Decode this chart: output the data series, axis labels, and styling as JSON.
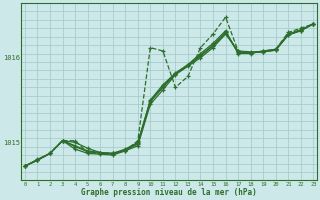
{
  "title": "Graphe pression niveau de la mer (hPa)",
  "bg_color": "#cce8e8",
  "grid_color": "#a8cccc",
  "line_color": "#2d6e2d",
  "x_ticks": [
    0,
    1,
    2,
    3,
    4,
    5,
    6,
    7,
    8,
    9,
    10,
    11,
    12,
    13,
    14,
    15,
    16,
    17,
    18,
    19,
    20,
    21,
    22,
    23
  ],
  "y_ticks": [
    1015,
    1016
  ],
  "ylim": [
    1014.55,
    1016.65
  ],
  "xlim": [
    -0.3,
    23.3
  ],
  "linear_series": [
    [
      1014.72,
      1014.79,
      1014.87,
      1015.02,
      1015.0,
      1014.93,
      1014.88,
      1014.87,
      1014.92,
      1015.0,
      1015.5,
      1015.68,
      1015.82,
      1015.92,
      1016.05,
      1016.17,
      1016.32,
      1016.05,
      1016.05,
      1016.08,
      1016.1,
      1016.28,
      1016.33,
      1016.4
    ],
    [
      1014.72,
      1014.79,
      1014.87,
      1015.02,
      1014.92,
      1014.87,
      1014.86,
      1014.85,
      1014.9,
      1014.96,
      1015.45,
      1015.62,
      1015.8,
      1015.9,
      1016.0,
      1016.12,
      1016.28,
      1016.08,
      1016.07,
      1016.07,
      1016.09,
      1016.27,
      1016.32,
      1016.4
    ],
    [
      1014.72,
      1014.79,
      1014.87,
      1015.02,
      1014.95,
      1014.89,
      1014.87,
      1014.86,
      1014.91,
      1014.98,
      1015.48,
      1015.65,
      1015.81,
      1015.91,
      1016.02,
      1016.14,
      1016.3,
      1016.06,
      1016.06,
      1016.07,
      1016.09,
      1016.27,
      1016.32,
      1016.4
    ],
    [
      1014.72,
      1014.8,
      1014.87,
      1015.02,
      1014.96,
      1014.9,
      1014.88,
      1014.87,
      1014.91,
      1014.99,
      1015.49,
      1015.66,
      1015.81,
      1015.91,
      1016.03,
      1016.15,
      1016.3,
      1016.07,
      1016.06,
      1016.08,
      1016.1,
      1016.28,
      1016.33,
      1016.4
    ]
  ],
  "jagged_series": [
    1014.72,
    1014.79,
    1014.87,
    1015.02,
    1015.02,
    1014.88,
    1014.87,
    1014.87,
    1014.9,
    1015.02,
    1016.12,
    1016.08,
    1015.65,
    1015.78,
    1016.12,
    1016.28,
    1016.48,
    1016.08,
    1016.06,
    1016.07,
    1016.1,
    1016.3,
    1016.35,
    1016.4
  ]
}
